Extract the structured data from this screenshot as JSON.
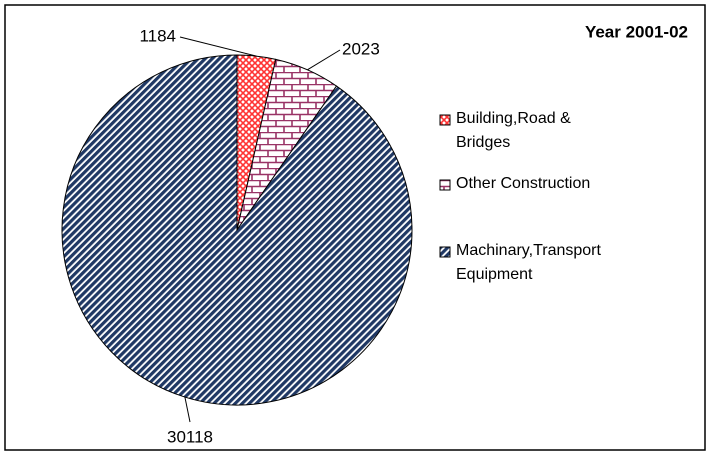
{
  "chart_data": {
    "type": "pie",
    "title": "Year 2001-02",
    "categories": [
      "Building,Road & Bridges",
      "Other Construction",
      "Machinary,Transport Equipment"
    ],
    "values": [
      1184,
      2023,
      30118
    ],
    "colors": [
      "#ff3333",
      "#993366",
      "#1f3864"
    ]
  }
}
